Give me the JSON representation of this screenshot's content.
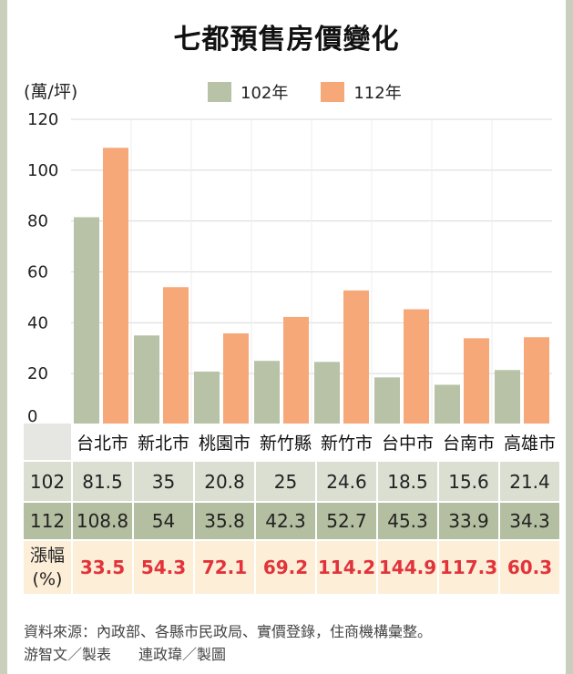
{
  "title": "七都預售房價變化",
  "unit_label": "(萬/坪)",
  "legend": [
    {
      "label": "102年",
      "color": "#b7c2a6"
    },
    {
      "label": "112年",
      "color": "#f6a878"
    }
  ],
  "chart_data": {
    "type": "bar",
    "title": "七都預售房價變化",
    "ylabel": "(萬/坪)",
    "ylim": [
      0,
      120
    ],
    "yticks": [
      "0",
      "20",
      "40",
      "60",
      "80",
      "100",
      "120"
    ],
    "categories": [
      "台北市",
      "新北市",
      "桃園市",
      "新竹縣",
      "新竹市",
      "台中市",
      "台南市",
      "高雄市"
    ],
    "series": [
      {
        "name": "102年",
        "color": "#b7c2a6",
        "values": [
          81.5,
          35,
          20.8,
          25,
          24.6,
          18.5,
          15.6,
          21.4
        ]
      },
      {
        "name": "112年",
        "color": "#f6a878",
        "values": [
          108.8,
          54,
          35.8,
          42.3,
          52.7,
          45.3,
          33.9,
          34.3
        ]
      }
    ],
    "grid": true
  },
  "table": {
    "row_labels": [
      "102",
      "112"
    ],
    "increase_label_line1": "漲幅",
    "increase_label_line2": "(%)",
    "row102": [
      "81.5",
      "35",
      "20.8",
      "25",
      "24.6",
      "18.5",
      "15.6",
      "21.4"
    ],
    "row112": [
      "108.8",
      "54",
      "35.8",
      "42.3",
      "52.7",
      "45.3",
      "33.9",
      "34.3"
    ],
    "increase": [
      "33.5",
      "54.3",
      "72.1",
      "69.2",
      "114.2",
      "144.9",
      "117.3",
      "60.3"
    ]
  },
  "source": {
    "line1": "資料來源：內政部、各縣市民政局、實價登錄，住商機構彙整。",
    "author": "游智文／製表",
    "designer": "連政瑋／製圖"
  }
}
